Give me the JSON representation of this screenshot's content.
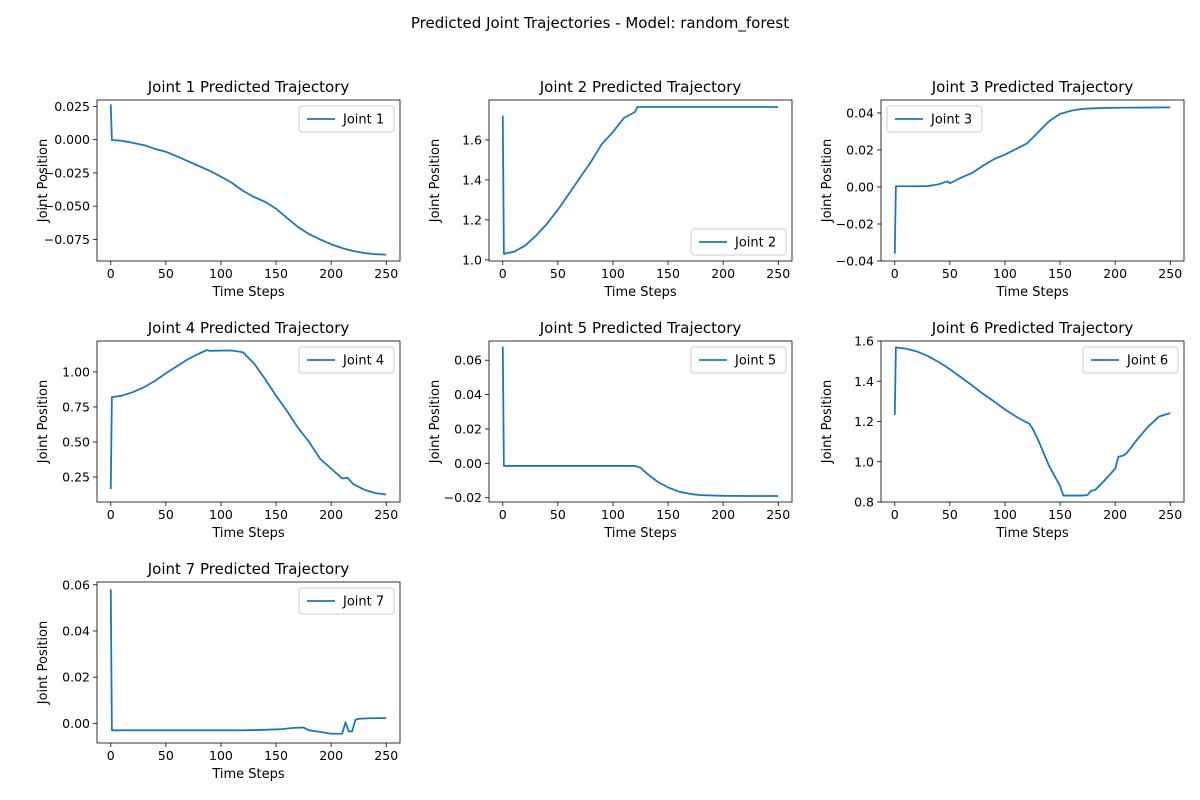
{
  "figure": {
    "suptitle": "Predicted Joint Trajectories - Model: random_forest",
    "line_color": "#1f77b4"
  },
  "chart_data": [
    {
      "type": "line",
      "title": "Joint 1 Predicted Trajectory",
      "xlabel": "Time Steps",
      "ylabel": "Joint Position",
      "xlim": [
        -12.5,
        262.5
      ],
      "ylim": [
        -0.0912,
        0.0298
      ],
      "xticks": [
        0,
        50,
        100,
        150,
        200,
        250
      ],
      "yticks": [
        -0.075,
        -0.05,
        -0.025,
        0.0,
        0.025
      ],
      "ytick_labels": [
        "−0.075",
        "−0.050",
        "−0.025",
        "0.000",
        "0.025"
      ],
      "legend_loc": "upper right",
      "series": [
        {
          "name": "Joint 1",
          "x": [
            0,
            1,
            10,
            20,
            30,
            40,
            50,
            60,
            70,
            80,
            90,
            100,
            110,
            120,
            130,
            140,
            150,
            160,
            170,
            180,
            190,
            200,
            210,
            220,
            230,
            240,
            250
          ],
          "y": [
            0.0265,
            -0.0003,
            -0.0008,
            -0.0024,
            -0.0041,
            -0.0069,
            -0.0091,
            -0.0125,
            -0.0162,
            -0.0198,
            -0.0235,
            -0.0278,
            -0.0325,
            -0.0385,
            -0.0431,
            -0.0467,
            -0.0519,
            -0.0588,
            -0.0657,
            -0.071,
            -0.075,
            -0.0786,
            -0.0815,
            -0.0837,
            -0.0852,
            -0.0861,
            -0.0864
          ]
        }
      ]
    },
    {
      "type": "line",
      "title": "Joint 2 Predicted Trajectory",
      "xlabel": "Time Steps",
      "ylabel": "Joint Position",
      "xlim": [
        -12.5,
        262.5
      ],
      "ylim": [
        0.994,
        1.8
      ],
      "xticks": [
        0,
        50,
        100,
        150,
        200,
        250
      ],
      "yticks": [
        1.0,
        1.2,
        1.4,
        1.6
      ],
      "ytick_labels": [
        "1.0",
        "1.2",
        "1.4",
        "1.6"
      ],
      "legend_loc": "lower right",
      "series": [
        {
          "name": "Joint 2",
          "x": [
            0,
            1,
            10,
            20,
            30,
            40,
            50,
            60,
            70,
            80,
            90,
            100,
            110,
            120,
            122,
            150,
            200,
            250
          ],
          "y": [
            1.722,
            1.03,
            1.04,
            1.07,
            1.12,
            1.18,
            1.25,
            1.33,
            1.41,
            1.49,
            1.58,
            1.64,
            1.71,
            1.74,
            1.765,
            1.765,
            1.765,
            1.765
          ]
        }
      ]
    },
    {
      "type": "line",
      "title": "Joint 3 Predicted Trajectory",
      "xlabel": "Time Steps",
      "ylabel": "Joint Position",
      "xlim": [
        -12.5,
        262.5
      ],
      "ylim": [
        -0.04,
        0.047
      ],
      "xticks": [
        0,
        50,
        100,
        150,
        200,
        250
      ],
      "yticks": [
        -0.04,
        -0.02,
        0.0,
        0.02,
        0.04
      ],
      "ytick_labels": [
        "−0.04",
        "−0.02",
        "0.00",
        "0.02",
        "0.04"
      ],
      "legend_loc": "upper left",
      "series": [
        {
          "name": "Joint 3",
          "x": [
            0,
            1,
            10,
            20,
            30,
            35,
            40,
            45,
            48,
            50,
            55,
            60,
            70,
            80,
            90,
            100,
            110,
            120,
            130,
            140,
            150,
            160,
            170,
            180,
            200,
            220,
            250
          ],
          "y": [
            -0.036,
            0.0004,
            0.0004,
            0.0004,
            0.0005,
            0.001,
            0.0015,
            0.0025,
            0.003,
            0.002,
            0.0035,
            0.005,
            0.0075,
            0.0115,
            0.015,
            0.0175,
            0.0205,
            0.0235,
            0.0295,
            0.0355,
            0.0395,
            0.0412,
            0.0422,
            0.0425,
            0.0428,
            0.0429,
            0.043
          ]
        }
      ]
    },
    {
      "type": "line",
      "title": "Joint 4 Predicted Trajectory",
      "xlabel": "Time Steps",
      "ylabel": "Joint Position",
      "xlim": [
        -12.5,
        262.5
      ],
      "ylim": [
        0.072,
        1.22
      ],
      "xticks": [
        0,
        50,
        100,
        150,
        200,
        250
      ],
      "yticks": [
        0.25,
        0.5,
        0.75,
        1.0
      ],
      "ytick_labels": [
        "0.25",
        "0.50",
        "0.75",
        "1.00"
      ],
      "legend_loc": "upper right",
      "series": [
        {
          "name": "Joint 4",
          "x": [
            0,
            1,
            10,
            20,
            30,
            40,
            50,
            60,
            70,
            80,
            87,
            90,
            100,
            110,
            120,
            125,
            130,
            140,
            150,
            160,
            170,
            180,
            190,
            200,
            210,
            215,
            220,
            230,
            240,
            250
          ],
          "y": [
            0.165,
            0.82,
            0.83,
            0.855,
            0.89,
            0.935,
            0.99,
            1.04,
            1.09,
            1.13,
            1.155,
            1.15,
            1.152,
            1.152,
            1.14,
            1.1,
            1.06,
            0.95,
            0.83,
            0.72,
            0.6,
            0.5,
            0.38,
            0.31,
            0.24,
            0.245,
            0.2,
            0.16,
            0.135,
            0.125
          ]
        }
      ]
    },
    {
      "type": "line",
      "title": "Joint 5 Predicted Trajectory",
      "xlabel": "Time Steps",
      "ylabel": "Joint Position",
      "xlim": [
        -12.5,
        262.5
      ],
      "ylim": [
        -0.0225,
        0.0712
      ],
      "xticks": [
        0,
        50,
        100,
        150,
        200,
        250
      ],
      "yticks": [
        -0.02,
        0.0,
        0.02,
        0.04,
        0.06
      ],
      "ytick_labels": [
        "−0.02",
        "0.00",
        "0.02",
        "0.04",
        "0.06"
      ],
      "legend_loc": "upper right",
      "series": [
        {
          "name": "Joint 5",
          "x": [
            0,
            1,
            25,
            50,
            75,
            100,
            120,
            125,
            130,
            140,
            150,
            160,
            170,
            180,
            200,
            225,
            250
          ],
          "y": [
            0.068,
            -0.0015,
            -0.0015,
            -0.0015,
            -0.0015,
            -0.0015,
            -0.0015,
            -0.0025,
            -0.0055,
            -0.0105,
            -0.014,
            -0.0165,
            -0.0178,
            -0.0185,
            -0.0189,
            -0.019,
            -0.019
          ]
        }
      ]
    },
    {
      "type": "line",
      "title": "Joint 6 Predicted Trajectory",
      "xlabel": "Time Steps",
      "ylabel": "Joint Position",
      "xlim": [
        -12.5,
        262.5
      ],
      "ylim": [
        0.8,
        1.6
      ],
      "xticks": [
        0,
        50,
        100,
        150,
        200,
        250
      ],
      "yticks": [
        0.8,
        1.0,
        1.2,
        1.4,
        1.6
      ],
      "ytick_labels": [
        "0.8",
        "1.0",
        "1.2",
        "1.4",
        "1.6"
      ],
      "legend_loc": "upper right",
      "series": [
        {
          "name": "Joint 6",
          "x": [
            0,
            1,
            10,
            20,
            30,
            40,
            50,
            60,
            70,
            80,
            90,
            100,
            110,
            118,
            122,
            125,
            130,
            140,
            145,
            150,
            153,
            160,
            170,
            175,
            178,
            182,
            190,
            200,
            203,
            207,
            210,
            220,
            230,
            240,
            250
          ],
          "y": [
            1.232,
            1.568,
            1.562,
            1.548,
            1.525,
            1.495,
            1.46,
            1.42,
            1.38,
            1.338,
            1.3,
            1.26,
            1.225,
            1.2,
            1.19,
            1.165,
            1.11,
            0.98,
            0.93,
            0.88,
            0.832,
            0.832,
            0.832,
            0.835,
            0.855,
            0.86,
            0.905,
            0.965,
            1.025,
            1.03,
            1.04,
            1.11,
            1.175,
            1.225,
            1.242
          ]
        }
      ]
    },
    {
      "type": "line",
      "title": "Joint 7 Predicted Trajectory",
      "xlabel": "Time Steps",
      "ylabel": "Joint Position",
      "xlim": [
        -12.5,
        262.5
      ],
      "ylim": [
        -0.0085,
        0.0612
      ],
      "xticks": [
        0,
        50,
        100,
        150,
        200,
        250
      ],
      "yticks": [
        0.0,
        0.02,
        0.04,
        0.06
      ],
      "ytick_labels": [
        "0.00",
        "0.02",
        "0.04",
        "0.06"
      ],
      "legend_loc": "upper right",
      "series": [
        {
          "name": "Joint 7",
          "x": [
            0,
            1,
            25,
            50,
            75,
            100,
            120,
            140,
            155,
            165,
            175,
            180,
            190,
            200,
            210,
            213,
            216,
            219,
            222,
            225,
            235,
            250
          ],
          "y": [
            0.058,
            -0.003,
            -0.003,
            -0.003,
            -0.003,
            -0.003,
            -0.003,
            -0.0028,
            -0.0025,
            -0.002,
            -0.0018,
            -0.003,
            -0.0037,
            -0.0045,
            -0.0045,
            0.0005,
            -0.0035,
            -0.0035,
            0.0015,
            0.002,
            0.0022,
            0.0023
          ]
        }
      ]
    }
  ]
}
